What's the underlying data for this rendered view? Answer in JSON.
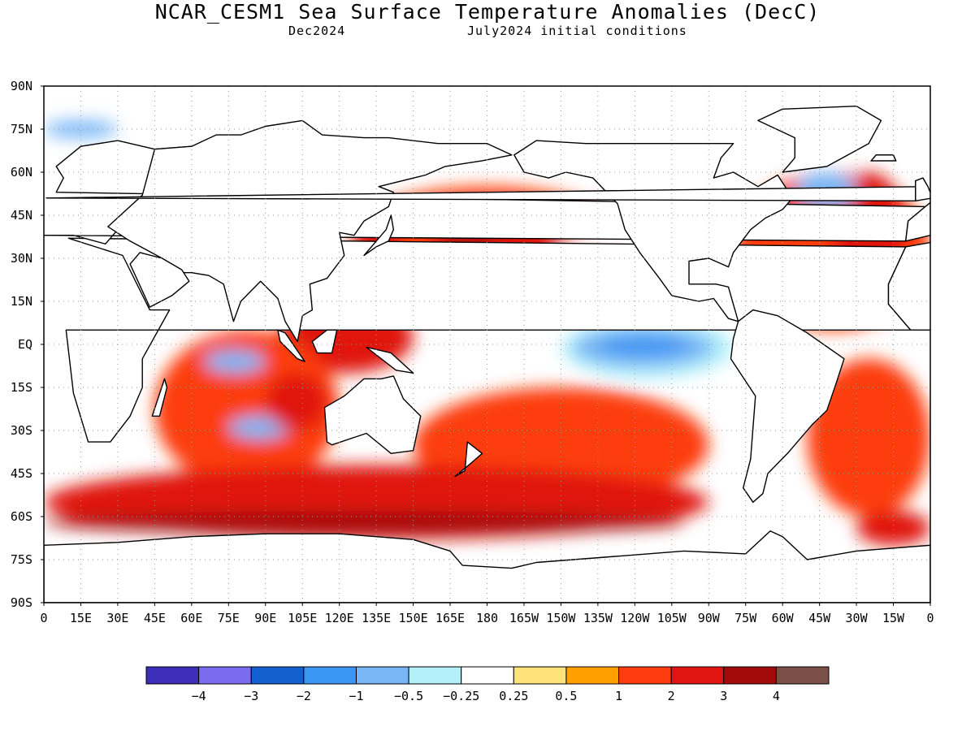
{
  "title": "NCAR_CESM1 Sea Surface Temperature Anomalies (DecC)",
  "subtitle_left": "Dec2024",
  "subtitle_right": "July2024 initial conditions",
  "map": {
    "lon_range": [
      0,
      360
    ],
    "lat_range": [
      -90,
      90
    ],
    "grid": true,
    "lat_ticks": [
      {
        "value": 90,
        "label": "90N"
      },
      {
        "value": 75,
        "label": "75N"
      },
      {
        "value": 60,
        "label": "60N"
      },
      {
        "value": 45,
        "label": "45N"
      },
      {
        "value": 30,
        "label": "30N"
      },
      {
        "value": 15,
        "label": "15N"
      },
      {
        "value": 0,
        "label": "EQ"
      },
      {
        "value": -15,
        "label": "15S"
      },
      {
        "value": -30,
        "label": "30S"
      },
      {
        "value": -45,
        "label": "45S"
      },
      {
        "value": -60,
        "label": "60S"
      },
      {
        "value": -75,
        "label": "75S"
      },
      {
        "value": -90,
        "label": "90S"
      }
    ],
    "lon_ticks": [
      {
        "value": 0,
        "label": "0"
      },
      {
        "value": 15,
        "label": "15E"
      },
      {
        "value": 30,
        "label": "30E"
      },
      {
        "value": 45,
        "label": "45E"
      },
      {
        "value": 60,
        "label": "60E"
      },
      {
        "value": 75,
        "label": "75E"
      },
      {
        "value": 90,
        "label": "90E"
      },
      {
        "value": 105,
        "label": "105E"
      },
      {
        "value": 120,
        "label": "120E"
      },
      {
        "value": 135,
        "label": "135E"
      },
      {
        "value": 150,
        "label": "150E"
      },
      {
        "value": 165,
        "label": "165E"
      },
      {
        "value": 180,
        "label": "180"
      },
      {
        "value": 195,
        "label": "165W"
      },
      {
        "value": 210,
        "label": "150W"
      },
      {
        "value": 225,
        "label": "135W"
      },
      {
        "value": 240,
        "label": "120W"
      },
      {
        "value": 255,
        "label": "105W"
      },
      {
        "value": 270,
        "label": "90W"
      },
      {
        "value": 285,
        "label": "75W"
      },
      {
        "value": 300,
        "label": "60W"
      },
      {
        "value": 315,
        "label": "45W"
      },
      {
        "value": 330,
        "label": "30W"
      },
      {
        "value": 345,
        "label": "15W"
      },
      {
        "value": 360,
        "label": "0"
      }
    ],
    "land_color": "#ffffff",
    "coast_color": "#000000",
    "anomaly_regions": [
      {
        "name": "north-pacific-warm",
        "level": 1,
        "lon": [
          125,
          235
        ],
        "lat": [
          20,
          55
        ]
      },
      {
        "name": "north-pacific-core",
        "level": 2,
        "lon": [
          155,
          215
        ],
        "lat": [
          30,
          48
        ]
      },
      {
        "name": "north-pacific-hot",
        "level": 3,
        "lon": [
          160,
          185
        ],
        "lat": [
          35,
          43
        ]
      },
      {
        "name": "kuroshio",
        "level": 2,
        "lon": [
          125,
          145
        ],
        "lat": [
          28,
          42
        ]
      },
      {
        "name": "eastern-pacific-cool",
        "level": -0.25,
        "lon": [
          200,
          262
        ],
        "lat": [
          -5,
          40
        ]
      },
      {
        "name": "eastern-pacific-chill",
        "level": -0.5,
        "lon": [
          210,
          280
        ],
        "lat": [
          -12,
          10
        ]
      },
      {
        "name": "nino-cold",
        "level": -1,
        "lon": [
          215,
          272
        ],
        "lat": [
          -8,
          6
        ]
      },
      {
        "name": "nino-core",
        "level": -2,
        "lon": [
          225,
          262
        ],
        "lat": [
          -4,
          3
        ]
      },
      {
        "name": "south-pacific-warm",
        "level": 1,
        "lon": [
          150,
          270
        ],
        "lat": [
          -55,
          -15
        ]
      },
      {
        "name": "maritime-continent",
        "level": 2,
        "lon": [
          95,
          150
        ],
        "lat": [
          -10,
          15
        ]
      },
      {
        "name": "indian-ocean-warm",
        "level": 1,
        "lon": [
          45,
          120
        ],
        "lat": [
          -50,
          5
        ]
      },
      {
        "name": "indian-cool",
        "level": -1,
        "lon": [
          65,
          90
        ],
        "lat": [
          -10,
          -2
        ]
      },
      {
        "name": "south-indian-cool",
        "level": -1,
        "lon": [
          75,
          100
        ],
        "lat": [
          -33,
          -25
        ]
      },
      {
        "name": "west-australia",
        "level": 2,
        "lon": [
          90,
          115
        ],
        "lat": [
          -30,
          -10
        ]
      },
      {
        "name": "southern-ocean-band",
        "level": 2,
        "lon": [
          0,
          270
        ],
        "lat": [
          -68,
          -42
        ]
      },
      {
        "name": "southern-ocean-core",
        "level": 3,
        "lon": [
          0,
          260
        ],
        "lat": [
          -66,
          -58
        ]
      },
      {
        "name": "north-atlantic-warm",
        "level": 1,
        "lon": [
          280,
          360
        ],
        "lat": [
          5,
          60
        ]
      },
      {
        "name": "north-atlantic-core",
        "level": 2,
        "lon": [
          320,
          350
        ],
        "lat": [
          20,
          60
        ]
      },
      {
        "name": "labrador-cool",
        "level": -1,
        "lon": [
          305,
          330
        ],
        "lat": [
          47,
          60
        ]
      },
      {
        "name": "south-atlantic-warm",
        "level": 1,
        "lon": [
          310,
          360
        ],
        "lat": [
          -60,
          -5
        ]
      },
      {
        "name": "south-atlantic-hot",
        "level": 2,
        "lon": [
          330,
          360
        ],
        "lat": [
          -70,
          -58
        ]
      },
      {
        "name": "arctic-cool",
        "level": -1,
        "lon": [
          0,
          30
        ],
        "lat": [
          72,
          78
        ]
      }
    ]
  },
  "colorbar": {
    "colors": [
      "#3c2eb8",
      "#7a6cf0",
      "#1560d0",
      "#3c96f4",
      "#78b6f6",
      "#b4f0fa",
      "#ffffff",
      "#fee27a",
      "#ffa000",
      "#fd3c10",
      "#e01410",
      "#a50a0a",
      "#7a5048"
    ],
    "ticks": [
      "−4",
      "−3",
      "−2",
      "−1",
      "−0.5",
      "−0.25",
      "0.25",
      "0.5",
      "1",
      "2",
      "3",
      "4"
    ]
  }
}
